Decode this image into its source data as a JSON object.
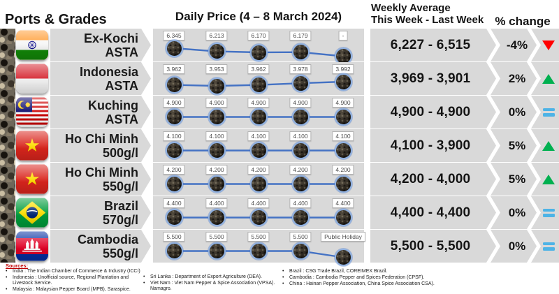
{
  "header": {
    "ports_grades_title": "Ports & Grades",
    "daily_price_title": "Daily Price (4 – 8 March 2024)",
    "weekly_average_title_line1": "Weekly Average",
    "weekly_average_title_line2": "This Week - Last Week",
    "percent_change_title": "% change"
  },
  "colors": {
    "band_gray": "#d9d9d9",
    "line_blue": "#4472c4",
    "trend_up_green": "#00b050",
    "trend_down_red": "#ff0000",
    "trend_equal_blue": "#4db3e6",
    "sources_red": "#c00000"
  },
  "chart_data": {
    "type": "line",
    "date_range": "4 – 8 March 2024",
    "num_daily_points": 5,
    "rows": [
      {
        "flag": "india",
        "port": "Ex-Kochi",
        "grade": "ASTA",
        "values": [
          6345,
          6213,
          6170,
          6179,
          null
        ],
        "value_labels": [
          "6.345",
          "6.213",
          "6.170",
          "6.179",
          "-"
        ],
        "weekly_average": "6,227 - 6,515",
        "percent_change": "-4%",
        "trend": "down"
      },
      {
        "flag": "indonesia",
        "port": "Indonesia",
        "grade": "ASTA",
        "values": [
          3962,
          3953,
          3962,
          3978,
          3992
        ],
        "value_labels": [
          "3.962",
          "3.953",
          "3.962",
          "3.978",
          "3.992"
        ],
        "weekly_average": "3,969 - 3,901",
        "percent_change": "2%",
        "trend": "up"
      },
      {
        "flag": "malaysia",
        "port": "Kuching",
        "grade": "ASTA",
        "values": [
          4900,
          4900,
          4900,
          4900,
          4900
        ],
        "value_labels": [
          "4.900",
          "4.900",
          "4.900",
          "4.900",
          "4.900"
        ],
        "weekly_average": "4,900 - 4,900",
        "percent_change": "0%",
        "trend": "equal"
      },
      {
        "flag": "vietnam",
        "port": "Ho Chi Minh",
        "grade": "500g/l",
        "values": [
          4100,
          4100,
          4100,
          4100,
          4100
        ],
        "value_labels": [
          "4.100",
          "4.100",
          "4.100",
          "4.100",
          "4.100"
        ],
        "weekly_average": "4,100 - 3,900",
        "percent_change": "5%",
        "trend": "up"
      },
      {
        "flag": "vietnam",
        "port": "Ho Chi Minh",
        "grade": "550g/l",
        "values": [
          4200,
          4200,
          4200,
          4200,
          4200
        ],
        "value_labels": [
          "4.200",
          "4.200",
          "4.200",
          "4.200",
          "4.200"
        ],
        "weekly_average": "4,200 - 4,000",
        "percent_change": "5%",
        "trend": "up"
      },
      {
        "flag": "brazil",
        "port": "Brazil",
        "grade": "570g/l",
        "values": [
          4400,
          4400,
          4400,
          4400,
          4400
        ],
        "value_labels": [
          "4.400",
          "4.400",
          "4.400",
          "4.400",
          "4.400"
        ],
        "weekly_average": "4,400 - 4,400",
        "percent_change": "0%",
        "trend": "equal"
      },
      {
        "flag": "cambodia",
        "port": "Cambodia",
        "grade": "550g/l",
        "values": [
          5500,
          5500,
          5500,
          5500,
          null
        ],
        "value_labels": [
          "5.500",
          "5.500",
          "5.500",
          "5.500",
          "Public Holiday"
        ],
        "weekly_average": "5,500 - 5,500",
        "percent_change": "0%",
        "trend": "equal"
      }
    ]
  },
  "sources": {
    "title": "Sources:",
    "columns": [
      [
        "India : The Indian Chamber of Commerce & Industry (ICCI)",
        "Indonesia : Unofficial source, Regional Plantation and Livestock Service.",
        "Malaysia : Malaysian Pepper Board (MPB), Saraspice."
      ],
      [
        "Sri Lanka : Department of Export Agriculture (DEA).",
        "Viet Nam : Viet Nam Pepper & Spice Association (VPSA). Namagro."
      ],
      [
        "Brazil : CSG Trade Brazil, COREIMEX Brazil.",
        "Cambodia : Cambodia Pepper and Spices Federation (CPSF).",
        "China : Hainan Pepper Association, China Spice Association CSA)."
      ]
    ]
  }
}
